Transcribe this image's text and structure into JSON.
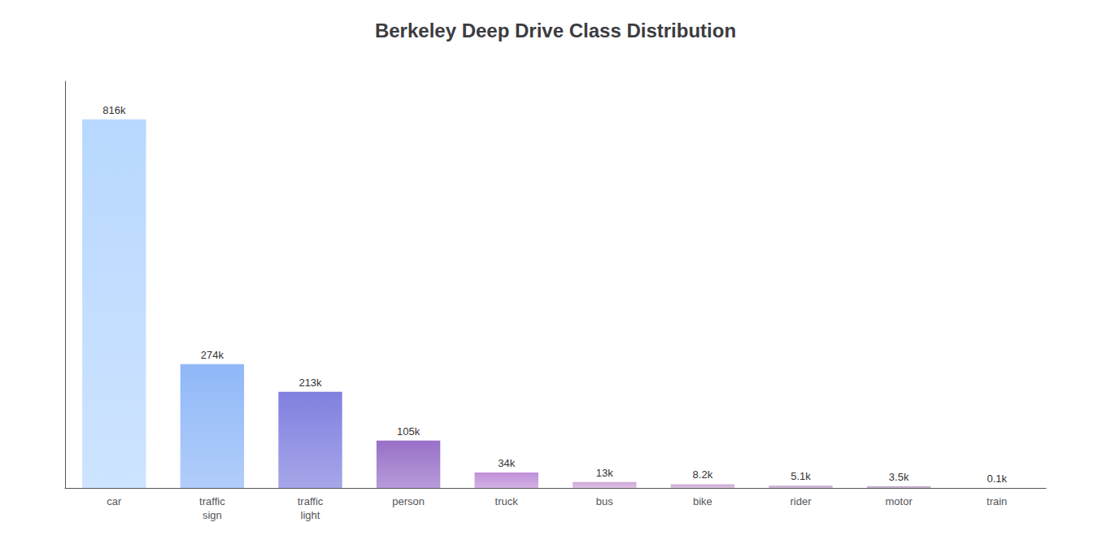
{
  "chart_data": {
    "type": "bar",
    "title": "Berkeley Deep Drive Class Distribution",
    "categories": [
      "car",
      "traffic\nsign",
      "traffic\nlight",
      "person",
      "truck",
      "bus",
      "bike",
      "rider",
      "motor",
      "train"
    ],
    "values": [
      816000,
      274000,
      213000,
      105000,
      34000,
      13000,
      8200,
      5100,
      3500,
      100
    ],
    "value_labels": [
      "816k",
      "274k",
      "213k",
      "105k",
      "34k",
      "13k",
      "8.2k",
      "5.1k",
      "3.5k",
      "0.1k"
    ],
    "data_labels": true,
    "colors": [
      "#b8d8ff",
      "#90b8f8",
      "#8080e0",
      "#9870c8",
      "#c090d8",
      "#d0a8d8",
      "#ccaad4",
      "#c4a4cc",
      "#bca0c8",
      "#b8a0c4"
    ],
    "ylim": [
      0,
      900000
    ],
    "grid": false,
    "tick_labels": "x"
  }
}
